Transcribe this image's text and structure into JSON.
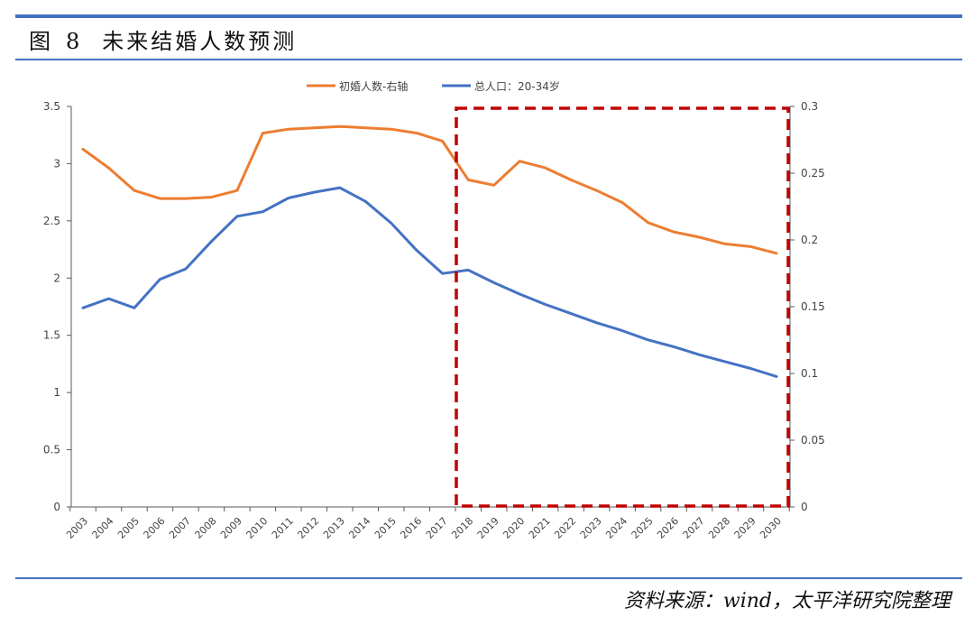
{
  "header": {
    "figure_label": "图",
    "figure_number": "8",
    "figure_title": "未来结婚人数预测"
  },
  "footer": {
    "source": "资料来源：wind，太平洋研究院整理"
  },
  "colors": {
    "rule": "#4472c4",
    "orange_series": "#ed7d31",
    "blue_series": "#4472c4",
    "highlight_box": "#c00000"
  },
  "chart_data": {
    "type": "line",
    "categories": [
      "2003",
      "2004",
      "2005",
      "2006",
      "2007",
      "2008",
      "2009",
      "2010",
      "2011",
      "2012",
      "2013",
      "2014",
      "2015",
      "2016",
      "2017",
      "2018",
      "2019",
      "2020",
      "2021",
      "2022",
      "2023",
      "2024",
      "2025",
      "2026",
      "2027",
      "2028",
      "2029",
      "2030"
    ],
    "series": [
      {
        "name": "初婚人数-右轴",
        "axis": "right",
        "color": "#ed7d31",
        "values": [
          0.268,
          0.254,
          0.237,
          0.231,
          0.231,
          0.232,
          0.237,
          0.28,
          0.283,
          0.284,
          0.285,
          0.284,
          0.283,
          0.28,
          0.274,
          0.245,
          0.241,
          0.259,
          0.254,
          0.245,
          0.237,
          0.228,
          0.213,
          0.206,
          0.202,
          0.197,
          0.195,
          0.19
        ]
      },
      {
        "name": "总人口：20-34岁",
        "axis": "left",
        "color": "#4472c4",
        "values": [
          1.74,
          1.82,
          1.74,
          1.99,
          2.08,
          2.32,
          2.54,
          2.58,
          2.7,
          2.75,
          2.79,
          2.67,
          2.48,
          2.24,
          2.04,
          2.07,
          1.96,
          1.86,
          1.77,
          1.69,
          1.61,
          1.54,
          1.46,
          1.4,
          1.33,
          1.27,
          1.21,
          1.14
        ]
      }
    ],
    "y_left": {
      "min": 0,
      "max": 3.5,
      "ticks": [
        "0",
        "0.5",
        "1",
        "1.5",
        "2",
        "2.5",
        "3",
        "3.5"
      ]
    },
    "y_right": {
      "min": 0,
      "max": 0.3,
      "ticks": [
        "0",
        "0.05",
        "0.1",
        "0.15",
        "0.2",
        "0.25",
        "0.3"
      ]
    },
    "legend_position": "top-center",
    "grid": false,
    "highlight_region": {
      "from_category": "2018",
      "to_category": "2030",
      "style": "dashed"
    }
  }
}
